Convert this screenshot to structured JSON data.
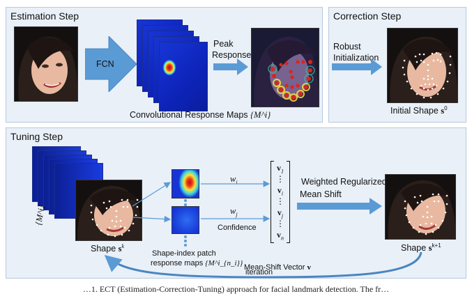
{
  "panels": {
    "estimation": {
      "title": "Estimation Step"
    },
    "correction": {
      "title": "Correction Step"
    },
    "tuning": {
      "title": "Tuning Step"
    }
  },
  "estimation": {
    "fcn_label": "FCN",
    "peak_response_line1": "Peak",
    "peak_response_line2": "Response",
    "maps_caption": "Convolutional Response Maps",
    "maps_symbol": "{M^i}"
  },
  "correction": {
    "robust_line1": "Robust",
    "robust_line2": "Initialization",
    "initial_shape_label": "Initial Shape",
    "initial_shape_symbol": "s",
    "initial_shape_sup": "0"
  },
  "tuning": {
    "stack_symbol": "{M^i}",
    "shape_k_label": "Shape",
    "shape_k_symbol": "s",
    "shape_k_sup": "k",
    "patch_caption_line1": "Shape-index patch",
    "patch_caption_line2": "response maps",
    "patch_symbol": "{M^i_{n_i}}",
    "weight_i": "w",
    "weight_i_sub": "i",
    "weight_j": "w",
    "weight_j_sub": "j",
    "confidence_label": "Confidence",
    "vector_entries": [
      "v",
      "⋮",
      "v",
      "⋮",
      "v",
      "⋮",
      "v"
    ],
    "vector_subs": [
      "1",
      "",
      "i",
      "",
      "j",
      "",
      "n"
    ],
    "mean_shift_vector_label": "Mean-Shift Vector",
    "mean_shift_vector_symbol": "v",
    "weighted_line1": "Weighted Regularized",
    "weighted_line2": "Mean Shift",
    "shape_k1_label": "Shape",
    "shape_k1_symbol": "s",
    "shape_k1_sup": "k+1",
    "iteration_label": "iteration"
  },
  "caption": "…1. ECT (Estimation-Correction-Tuning) approach for facial landmark detection. The fr…",
  "colors": {
    "panel_bg": "#e9f0f8",
    "arrow_fill": "#5b9bd5",
    "map_blue": "#1735d6",
    "landmark_white": "#ffffff",
    "heat_red": "#e0221a",
    "heat_yellow": "#f5e53a"
  }
}
